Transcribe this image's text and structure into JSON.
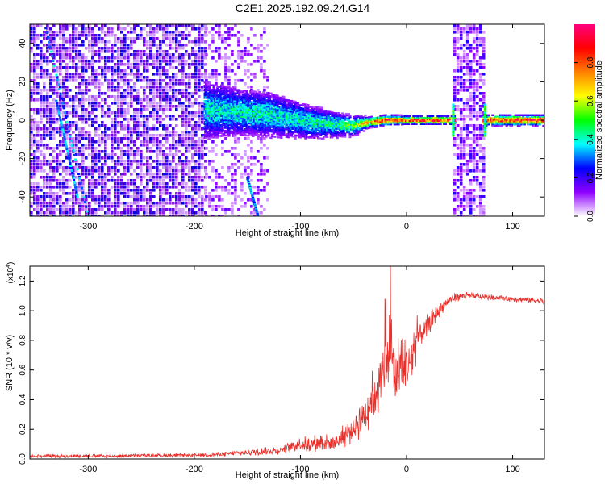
{
  "title": "C2E1.2025.192.09.24.G14",
  "colormap": [
    "#ffffff",
    "#8f00ff",
    "#0000ff",
    "#00ffff",
    "#00ff00",
    "#ffff00",
    "#ff8000",
    "#ff0000",
    "#ff0080"
  ],
  "chart_data": [
    {
      "type": "heatmap",
      "xlabel": "Height of straight line (km)",
      "ylabel": "Frequency (Hz)",
      "xlim": [
        -355,
        130
      ],
      "ylim": [
        -50,
        50
      ],
      "xticks": [
        -300,
        -200,
        -100,
        0,
        100
      ],
      "yticks": [
        -40,
        -20,
        0,
        20,
        40
      ],
      "colorbar": {
        "label": "Normalized spectral amplitude",
        "range": [
          0.0,
          1.0
        ],
        "ticks": [
          0.0,
          0.2,
          0.4,
          0.6,
          0.8
        ]
      },
      "ridge": [
        {
          "x": -190,
          "y": 5,
          "amp": 0.4,
          "spread": 9
        },
        {
          "x": -170,
          "y": 5,
          "amp": 0.4,
          "spread": 8
        },
        {
          "x": -150,
          "y": 4,
          "amp": 0.42,
          "spread": 7
        },
        {
          "x": -130,
          "y": 3,
          "amp": 0.42,
          "spread": 7
        },
        {
          "x": -110,
          "y": 1,
          "amp": 0.4,
          "spread": 6
        },
        {
          "x": -90,
          "y": -1,
          "amp": 0.42,
          "spread": 5
        },
        {
          "x": -70,
          "y": -2,
          "amp": 0.45,
          "spread": 4
        },
        {
          "x": -50,
          "y": -3,
          "amp": 0.5,
          "spread": 3
        },
        {
          "x": -35,
          "y": -1,
          "amp": 0.8,
          "spread": 1.5
        },
        {
          "x": -20,
          "y": 0,
          "amp": 0.85,
          "spread": 1.5
        },
        {
          "x": 0,
          "y": 0,
          "amp": 0.88,
          "spread": 1.2
        },
        {
          "x": 40,
          "y": 0,
          "amp": 0.9,
          "spread": 1.2
        },
        {
          "x": 75,
          "y": 0,
          "amp": 0.85,
          "spread": 1.5
        },
        {
          "x": 130,
          "y": 0,
          "amp": 0.9,
          "spread": 1.5
        }
      ],
      "noise_regions": [
        {
          "x0": -355,
          "x1": -190,
          "density": 0.75,
          "amp": 0.25
        },
        {
          "x0": -190,
          "x1": -130,
          "density": 0.35,
          "amp": 0.18
        },
        {
          "x0": 44,
          "x1": 74,
          "density": 0.7,
          "amp": 0.22
        }
      ],
      "streaks": [
        {
          "x0": -340,
          "y0": 48,
          "x1": -300,
          "y1": -50
        },
        {
          "x0": -330,
          "y0": 10,
          "x1": -310,
          "y1": -40
        },
        {
          "x0": -150,
          "y0": -30,
          "x1": -140,
          "y1": -50
        }
      ]
    },
    {
      "type": "line",
      "xlabel": "Height of straight line (km)",
      "ylabel": "SNR (10 * v/v)",
      "ylabel_multiplier": "(x10",
      "ylabel_multiplier_exp": "4",
      "xlim": [
        -355,
        130
      ],
      "ylim": [
        0,
        1.3
      ],
      "xticks": [
        -300,
        -200,
        -100,
        0,
        100
      ],
      "yticks": [
        0.0,
        0.2,
        0.4,
        0.6,
        0.8,
        1.0,
        1.2
      ],
      "ytick_labels": [
        "0.0",
        "0.2",
        "0.4",
        "0.6",
        "0.8",
        "1.0",
        "1.2"
      ],
      "series_color": "#e8302b",
      "series": [
        {
          "x": [
            -355,
            -320,
            -280,
            -240,
            -200,
            -180,
            -160,
            -140,
            -120,
            -100,
            -90,
            -80,
            -70,
            -60,
            -50,
            -40,
            -30,
            -20,
            -15,
            -10,
            -5,
            0,
            5,
            10,
            20,
            30,
            40,
            50,
            60,
            80,
            100,
            120,
            130
          ],
          "y": [
            0.02,
            0.02,
            0.02,
            0.025,
            0.025,
            0.03,
            0.04,
            0.05,
            0.06,
            0.1,
            0.1,
            0.12,
            0.1,
            0.15,
            0.2,
            0.3,
            0.45,
            0.6,
            0.75,
            0.55,
            0.65,
            0.6,
            0.7,
            0.8,
            0.9,
            1.0,
            1.07,
            1.1,
            1.1,
            1.09,
            1.08,
            1.07,
            1.06
          ],
          "noise": [
            0.012,
            0.012,
            0.012,
            0.012,
            0.012,
            0.015,
            0.02,
            0.025,
            0.03,
            0.05,
            0.06,
            0.06,
            0.06,
            0.08,
            0.1,
            0.15,
            0.2,
            0.25,
            0.3,
            0.25,
            0.25,
            0.2,
            0.2,
            0.15,
            0.08,
            0.05,
            0.04,
            0.03,
            0.025,
            0.02,
            0.02,
            0.02,
            0.02
          ],
          "spikes": [
            {
              "x": -15,
              "y": 1.3
            },
            {
              "x": -30,
              "y": 0.85
            },
            {
              "x": -20,
              "y": 1.08
            },
            {
              "x": 10,
              "y": 0.97
            }
          ]
        }
      ]
    }
  ]
}
